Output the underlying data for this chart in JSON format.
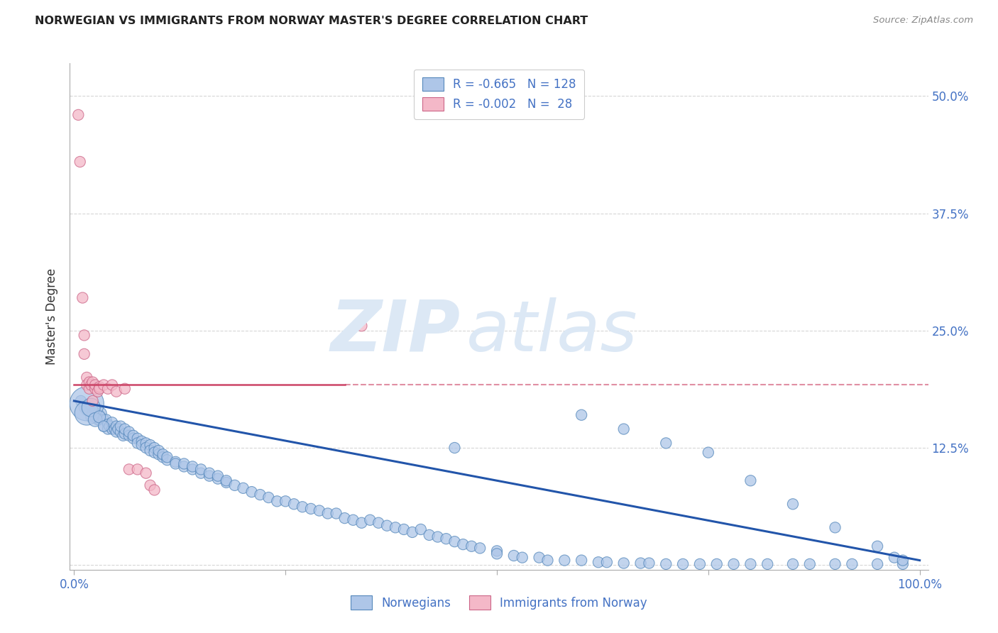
{
  "title": "NORWEGIAN VS IMMIGRANTS FROM NORWAY MASTER'S DEGREE CORRELATION CHART",
  "source": "Source: ZipAtlas.com",
  "ylabel": "Master's Degree",
  "watermark_zip": "ZIP",
  "watermark_atlas": "atlas",
  "blue_color": "#aec6e8",
  "blue_edge_color": "#5588bb",
  "pink_color": "#f4b8c8",
  "pink_edge_color": "#cc6688",
  "blue_line_color": "#2255aa",
  "pink_line_color": "#cc4466",
  "title_color": "#222222",
  "axis_label_color": "#4472c4",
  "watermark_color": "#dce8f5",
  "background_color": "#ffffff",
  "grid_color": "#cccccc",
  "dot_size": 120,
  "norwegians_x": [
    0.008,
    0.012,
    0.015,
    0.018,
    0.02,
    0.02,
    0.022,
    0.025,
    0.025,
    0.028,
    0.03,
    0.03,
    0.032,
    0.035,
    0.035,
    0.038,
    0.04,
    0.04,
    0.042,
    0.045,
    0.045,
    0.048,
    0.05,
    0.05,
    0.052,
    0.055,
    0.055,
    0.058,
    0.06,
    0.06,
    0.065,
    0.065,
    0.07,
    0.07,
    0.075,
    0.075,
    0.08,
    0.08,
    0.085,
    0.085,
    0.09,
    0.09,
    0.095,
    0.095,
    0.1,
    0.1,
    0.105,
    0.105,
    0.11,
    0.11,
    0.12,
    0.12,
    0.13,
    0.13,
    0.14,
    0.14,
    0.15,
    0.15,
    0.16,
    0.16,
    0.17,
    0.17,
    0.18,
    0.18,
    0.19,
    0.2,
    0.21,
    0.22,
    0.23,
    0.24,
    0.25,
    0.26,
    0.27,
    0.28,
    0.29,
    0.3,
    0.31,
    0.32,
    0.33,
    0.34,
    0.35,
    0.36,
    0.37,
    0.38,
    0.39,
    0.4,
    0.41,
    0.42,
    0.43,
    0.44,
    0.45,
    0.46,
    0.47,
    0.48,
    0.5,
    0.5,
    0.52,
    0.53,
    0.55,
    0.56,
    0.58,
    0.6,
    0.62,
    0.63,
    0.65,
    0.67,
    0.68,
    0.7,
    0.72,
    0.74,
    0.76,
    0.78,
    0.8,
    0.82,
    0.85,
    0.87,
    0.9,
    0.92,
    0.95,
    0.98,
    0.015,
    0.015,
    0.02,
    0.025,
    0.03,
    0.035,
    0.45,
    0.6,
    0.65,
    0.7,
    0.75,
    0.8,
    0.85,
    0.9,
    0.95,
    0.97,
    0.98
  ],
  "norwegians_y": [
    0.175,
    0.168,
    0.165,
    0.172,
    0.158,
    0.17,
    0.162,
    0.165,
    0.158,
    0.155,
    0.16,
    0.155,
    0.162,
    0.155,
    0.148,
    0.155,
    0.15,
    0.145,
    0.148,
    0.145,
    0.152,
    0.145,
    0.148,
    0.142,
    0.145,
    0.142,
    0.148,
    0.138,
    0.14,
    0.145,
    0.138,
    0.142,
    0.135,
    0.138,
    0.135,
    0.13,
    0.132,
    0.128,
    0.13,
    0.125,
    0.128,
    0.122,
    0.125,
    0.12,
    0.118,
    0.122,
    0.115,
    0.118,
    0.112,
    0.115,
    0.11,
    0.108,
    0.105,
    0.108,
    0.102,
    0.105,
    0.098,
    0.102,
    0.095,
    0.098,
    0.092,
    0.095,
    0.088,
    0.09,
    0.085,
    0.082,
    0.078,
    0.075,
    0.072,
    0.068,
    0.068,
    0.065,
    0.062,
    0.06,
    0.058,
    0.055,
    0.055,
    0.05,
    0.048,
    0.045,
    0.048,
    0.045,
    0.042,
    0.04,
    0.038,
    0.035,
    0.038,
    0.032,
    0.03,
    0.028,
    0.025,
    0.022,
    0.02,
    0.018,
    0.015,
    0.012,
    0.01,
    0.008,
    0.008,
    0.005,
    0.005,
    0.005,
    0.003,
    0.003,
    0.002,
    0.002,
    0.002,
    0.001,
    0.001,
    0.001,
    0.001,
    0.001,
    0.001,
    0.001,
    0.001,
    0.001,
    0.001,
    0.001,
    0.001,
    0.001,
    0.172,
    0.162,
    0.168,
    0.155,
    0.158,
    0.148,
    0.125,
    0.16,
    0.145,
    0.13,
    0.12,
    0.09,
    0.065,
    0.04,
    0.02,
    0.008,
    0.005
  ],
  "norwegians_size": [
    120,
    120,
    120,
    120,
    120,
    120,
    120,
    120,
    120,
    120,
    120,
    120,
    120,
    120,
    120,
    120,
    120,
    120,
    120,
    120,
    120,
    120,
    120,
    120,
    120,
    120,
    120,
    120,
    120,
    120,
    120,
    120,
    120,
    120,
    120,
    120,
    120,
    120,
    120,
    120,
    120,
    120,
    120,
    120,
    120,
    120,
    120,
    120,
    120,
    120,
    120,
    120,
    120,
    120,
    120,
    120,
    120,
    120,
    120,
    120,
    120,
    120,
    120,
    120,
    120,
    120,
    120,
    120,
    120,
    120,
    120,
    120,
    120,
    120,
    120,
    120,
    120,
    120,
    120,
    120,
    120,
    120,
    120,
    120,
    120,
    120,
    120,
    120,
    120,
    120,
    120,
    120,
    120,
    120,
    120,
    120,
    120,
    120,
    120,
    120,
    120,
    120,
    120,
    120,
    120,
    120,
    120,
    120,
    120,
    120,
    120,
    120,
    120,
    120,
    120,
    120,
    120,
    120,
    120,
    120,
    1200,
    600,
    350,
    200,
    150,
    120,
    120,
    120,
    120,
    120,
    120,
    120,
    120,
    120,
    120,
    120,
    120
  ],
  "immigrants_x": [
    0.005,
    0.007,
    0.01,
    0.012,
    0.012,
    0.015,
    0.015,
    0.018,
    0.018,
    0.02,
    0.022,
    0.022,
    0.025,
    0.025,
    0.028,
    0.03,
    0.03,
    0.035,
    0.04,
    0.045,
    0.05,
    0.06,
    0.065,
    0.075,
    0.085,
    0.09,
    0.095,
    0.34
  ],
  "immigrants_y": [
    0.48,
    0.43,
    0.285,
    0.245,
    0.225,
    0.2,
    0.192,
    0.188,
    0.195,
    0.192,
    0.175,
    0.195,
    0.188,
    0.192,
    0.185,
    0.19,
    0.188,
    0.192,
    0.188,
    0.192,
    0.185,
    0.188,
    0.102,
    0.102,
    0.098,
    0.085,
    0.08,
    0.255
  ],
  "immigrants_size": [
    120,
    120,
    120,
    120,
    120,
    120,
    120,
    120,
    120,
    120,
    120,
    120,
    120,
    120,
    120,
    120,
    120,
    120,
    120,
    120,
    120,
    120,
    120,
    120,
    120,
    120,
    120,
    120
  ],
  "trendline_blue_x0": 0.0,
  "trendline_blue_y0": 0.175,
  "trendline_blue_x1": 1.0,
  "trendline_blue_y1": 0.005,
  "trendline_pink_solid_x0": 0.0,
  "trendline_pink_solid_x1": 0.32,
  "trendline_pink_y": 0.192,
  "trendline_pink_dash_x0": 0.32,
  "trendline_pink_dash_x1": 1.01,
  "xlim": [
    -0.005,
    1.01
  ],
  "ylim": [
    -0.005,
    0.535
  ],
  "yticks": [
    0.0,
    0.125,
    0.25,
    0.375,
    0.5
  ],
  "ytick_labels_right": [
    "",
    "12.5%",
    "25.0%",
    "37.5%",
    "50.0%"
  ],
  "xtick_positions": [
    0.0,
    0.25,
    0.5,
    0.75,
    1.0
  ]
}
